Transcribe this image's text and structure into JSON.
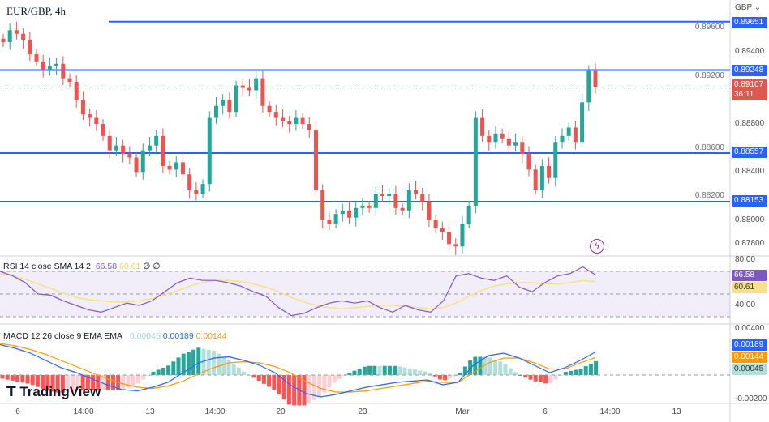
{
  "header": {
    "symbol": "EUR/GBP, 4h",
    "currency": "GBP"
  },
  "price_axis": {
    "ticks": [
      "0.89600",
      "0.89400",
      "0.89200",
      "0.88800",
      "0.88600",
      "0.88400",
      "0.88200",
      "0.88000",
      "0.87800"
    ],
    "levels": [
      "0.89651",
      "0.89248",
      "0.88557",
      "0.88153"
    ],
    "current_price": "0.89107",
    "countdown": "36:11"
  },
  "rsi": {
    "label": "RSI 14 close SMA 14 2",
    "value": "66.58",
    "sma_value": "60.61",
    "extra1": "∅",
    "extra2": "∅",
    "ticks": [
      "80.00",
      "40.00"
    ],
    "values": [
      70,
      66,
      60,
      50,
      49,
      44,
      40,
      36,
      34,
      38,
      42,
      40,
      44,
      52,
      60,
      64,
      62,
      62,
      60,
      57,
      52,
      48,
      38,
      31,
      33,
      38,
      42,
      44,
      42,
      44,
      38,
      34,
      40,
      36,
      34,
      44,
      66,
      68,
      64,
      62,
      66,
      56,
      52,
      60,
      66,
      68,
      74,
      67
    ],
    "sma": [
      68,
      66,
      63,
      59,
      55,
      51,
      47,
      45,
      44,
      43,
      43,
      44,
      46,
      49,
      53,
      57,
      60,
      62,
      62,
      61,
      59,
      56,
      52,
      47,
      43,
      40,
      38,
      37,
      38,
      39,
      40,
      40,
      39,
      38,
      37,
      38,
      42,
      48,
      53,
      57,
      59,
      60,
      60,
      59,
      59,
      60,
      62,
      61
    ]
  },
  "macd": {
    "label": "MACD 12 26 close 9 EMA EMA",
    "hist_value": "0.00045",
    "macd_value": "0.00189",
    "signal_value": "0.00144",
    "ticks": [
      "0.00400",
      "-0.00200"
    ],
    "macd_line": [
      2.5,
      2.2,
      1.8,
      1.2,
      0.6,
      0.2,
      -0.3,
      -0.8,
      -1.2,
      -1.3,
      -1.0,
      -0.6,
      0.2,
      1.0,
      1.4,
      1.5,
      1.2,
      0.8,
      0.2,
      -0.8,
      -1.5,
      -1.8,
      -1.6,
      -1.3,
      -1.0,
      -0.8,
      -0.6,
      -0.5,
      -0.4,
      -0.8,
      -0.6,
      0.8,
      1.6,
      1.8,
      1.4,
      0.8,
      0.2,
      0.6,
      1.2,
      1.89
    ],
    "signal_line": [
      2.6,
      2.4,
      2.1,
      1.7,
      1.2,
      0.7,
      0.2,
      -0.3,
      -0.7,
      -1.0,
      -1.1,
      -0.9,
      -0.5,
      0.1,
      0.6,
      1.0,
      1.1,
      1.0,
      0.7,
      0.2,
      -0.5,
      -1.1,
      -1.4,
      -1.4,
      -1.3,
      -1.1,
      -0.9,
      -0.7,
      -0.5,
      -0.6,
      -0.6,
      0.2,
      1.0,
      1.4,
      1.4,
      1.0,
      0.5,
      0.5,
      1.0,
      1.44
    ]
  },
  "time_axis": [
    "6",
    "14:00",
    "13",
    "14:00",
    "20",
    "23",
    "Mar",
    "6",
    "14:00",
    "13"
  ],
  "logo": "TradingView",
  "closes": [
    0.8948,
    0.8958,
    0.8955,
    0.895,
    0.8938,
    0.8932,
    0.8925,
    0.8928,
    0.893,
    0.8918,
    0.8915,
    0.89,
    0.8888,
    0.8885,
    0.888,
    0.887,
    0.8858,
    0.8862,
    0.8855,
    0.8852,
    0.884,
    0.8858,
    0.8862,
    0.887,
    0.8845,
    0.8842,
    0.8848,
    0.8838,
    0.8825,
    0.8822,
    0.883,
    0.8885,
    0.8895,
    0.89,
    0.889,
    0.8912,
    0.891,
    0.8908,
    0.8918,
    0.8895,
    0.889,
    0.8885,
    0.8882,
    0.888,
    0.8885,
    0.888,
    0.8875,
    0.8825,
    0.88,
    0.8797,
    0.8805,
    0.8808,
    0.8802,
    0.881,
    0.8812,
    0.881,
    0.8822,
    0.882,
    0.8822,
    0.881,
    0.8808,
    0.8825,
    0.8822,
    0.8815,
    0.88,
    0.8793,
    0.879,
    0.878,
    0.8778,
    0.8797,
    0.8812,
    0.8885,
    0.887,
    0.8865,
    0.8872,
    0.8868,
    0.8862,
    0.8865,
    0.8855,
    0.8842,
    0.8825,
    0.8845,
    0.8835,
    0.8865,
    0.887,
    0.8877,
    0.8865,
    0.8898,
    0.8924,
    0.8911
  ],
  "colors": {
    "up": "#26a69a",
    "down": "#ef5350",
    "level": "#2962ff",
    "rsi": "#7e57c2",
    "rsi_sma": "#f7e08a",
    "macd": "#2962ff",
    "signal": "#ff9800"
  }
}
